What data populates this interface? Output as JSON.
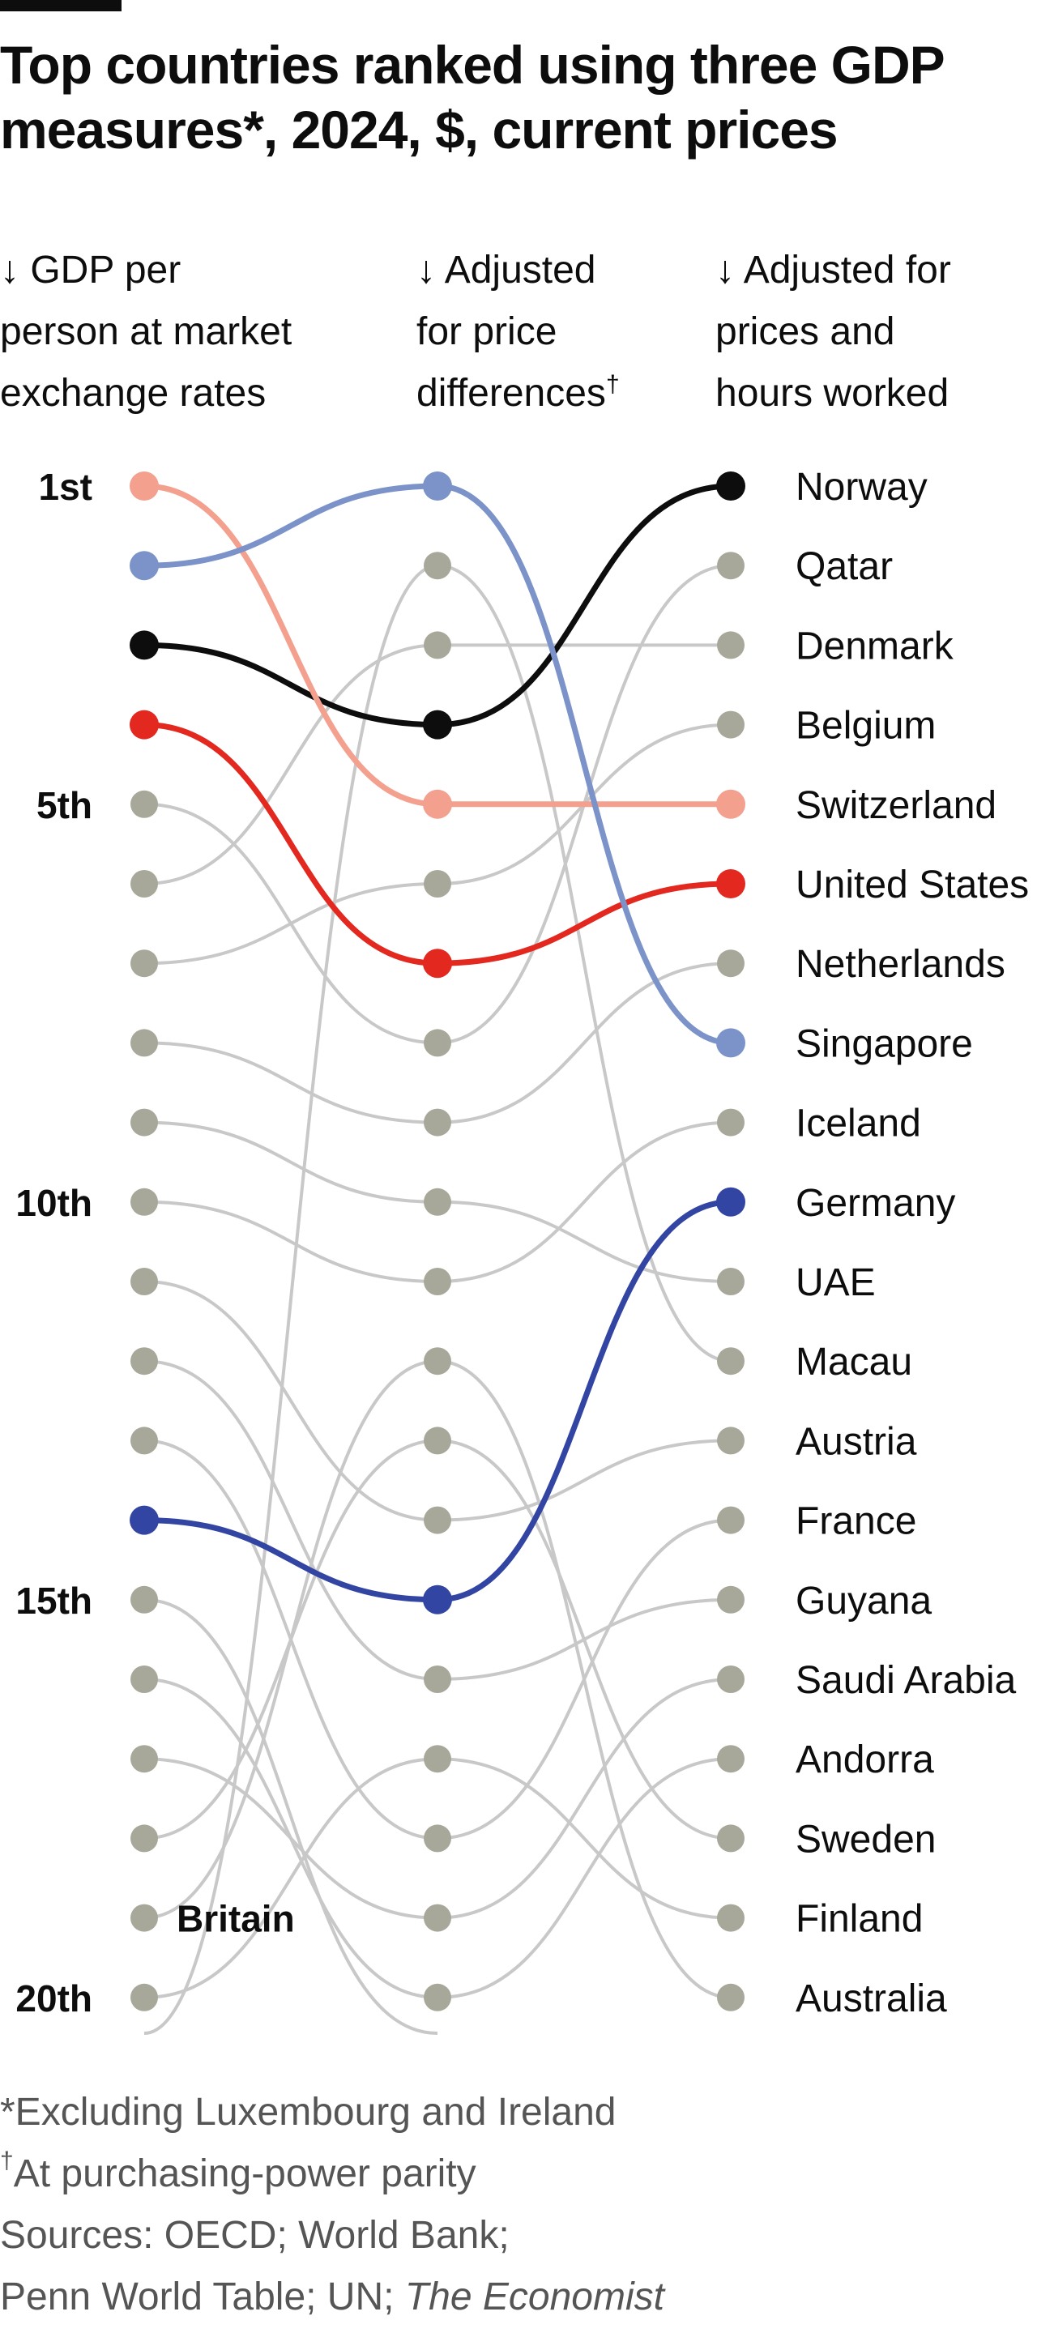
{
  "title": "Top countries ranked using three GDP measures*, 2024, $, current prices",
  "columns": [
    {
      "arrow": "↓",
      "lines": [
        "GDP per",
        "person at market",
        "exchange rates"
      ]
    },
    {
      "arrow": "↓",
      "lines": [
        "Adjusted",
        "for price",
        "differences"
      ],
      "superscript": "†"
    },
    {
      "arrow": "↓",
      "lines": [
        "Adjusted for",
        "prices and",
        "hours worked"
      ]
    }
  ],
  "rank_labels": {
    "1": "1st",
    "5": "5th",
    "10": "10th",
    "15": "15th",
    "20": "20th"
  },
  "inline_label": {
    "text": "Britain",
    "rank": 19
  },
  "notes": {
    "asterisk": "*Excluding Luxembourg and Ireland",
    "dagger_mark": "†",
    "dagger_text": "At purchasing-power parity",
    "sources_line1": "Sources: OECD; World Bank;",
    "sources_line2_prefix": "Penn World Table; UN; ",
    "sources_line2_italic": "The Economist"
  },
  "colors": {
    "background": "#ffffff",
    "text": "#0d0d0d",
    "notes_text": "#555555",
    "dot_grey": "#a8a89a",
    "line_grey": "#c8c8c8",
    "Norway": "#0d0d0d",
    "Switzerland": "#f4a08f",
    "United States": "#e3281f",
    "Singapore": "#7b93c9",
    "Germany": "#3345a3"
  },
  "chart_data": {
    "type": "bump",
    "axis": "rank (1 = highest)",
    "ylim": [
      1,
      20
    ],
    "columns": [
      "GDP per person at market exchange rates",
      "Adjusted for price differences",
      "Adjusted for prices and hours worked"
    ],
    "right_axis_countries": [
      "Norway",
      "Qatar",
      "Denmark",
      "Belgium",
      "Switzerland",
      "United States",
      "Netherlands",
      "Singapore",
      "Iceland",
      "Germany",
      "UAE",
      "Macau",
      "Austria",
      "France",
      "Guyana",
      "Saudi Arabia",
      "Andorra",
      "Sweden",
      "Finland",
      "Australia"
    ],
    "highlighted": [
      {
        "name": "Norway",
        "ranks": [
          3,
          4,
          1
        ]
      },
      {
        "name": "Switzerland",
        "ranks": [
          1,
          5,
          5
        ]
      },
      {
        "name": "United States",
        "ranks": [
          4,
          7,
          6
        ]
      },
      {
        "name": "Singapore",
        "ranks": [
          2,
          1,
          8
        ]
      },
      {
        "name": "Germany",
        "ranks": [
          14,
          15,
          10
        ]
      }
    ],
    "others_ranks": [
      [
        null,
        2,
        12
      ],
      [
        6,
        3,
        3
      ],
      [
        5,
        8,
        2
      ],
      [
        7,
        6,
        4
      ],
      [
        8,
        9,
        7
      ],
      [
        9,
        10,
        11
      ],
      [
        10,
        11,
        9
      ],
      [
        11,
        14,
        13
      ],
      [
        12,
        16,
        15
      ],
      [
        13,
        18,
        14
      ],
      [
        16,
        20,
        17
      ],
      [
        17,
        19,
        16
      ],
      [
        18,
        13,
        18
      ],
      [
        19,
        12,
        20
      ],
      [
        20,
        17,
        19
      ],
      [
        15,
        null,
        null
      ]
    ]
  }
}
